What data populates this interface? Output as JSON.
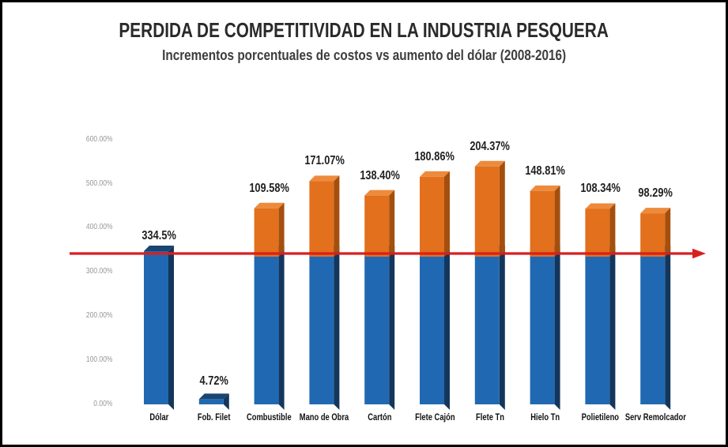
{
  "title": "PERDIDA DE COMPETITIVIDAD EN LA INDUSTRIA PESQUERA",
  "subtitle": "Incrementos porcentuales de costos vs aumento del dólar (2008-2016)",
  "chart_data": {
    "type": "bar",
    "stacked": true,
    "title": "PERDIDA DE COMPETITIVIDAD EN LA INDUSTRIA PESQUERA",
    "subtitle": "Incrementos porcentuales de costos vs aumento del dólar (2008-2016)",
    "base_value": 334.5,
    "reference_line": {
      "value": 334.5,
      "color": "#d81f1f"
    },
    "y_ticks": [
      "0.00%",
      "100.00%",
      "200.00%",
      "300.00%",
      "400.00%",
      "500.00%",
      "600.00%"
    ],
    "y_tick_values": [
      0,
      100,
      200,
      300,
      400,
      500,
      600
    ],
    "ylim": [
      0,
      600
    ],
    "categories": [
      "Dólar",
      "Fob. Filet",
      "Combustible",
      "Mano de Obra",
      "Cartón",
      "Flete Cajón",
      "Flete Tn",
      "Hielo Tn",
      "Polietileno",
      "Serv Remolcador"
    ],
    "bars": [
      {
        "category": "Dólar",
        "value": 334.5,
        "label": "334.5%",
        "stacked": false
      },
      {
        "category": "Fob. Filet",
        "value": 4.72,
        "label": "4.72%",
        "stacked": false
      },
      {
        "category": "Combustible",
        "value": 109.58,
        "label": "109.58%",
        "stacked": true
      },
      {
        "category": "Mano de Obra",
        "value": 171.07,
        "label": "171.07%",
        "stacked": true
      },
      {
        "category": "Cartón",
        "value": 138.4,
        "label": "138.40%",
        "stacked": true
      },
      {
        "category": "Flete Cajón",
        "value": 180.86,
        "label": "180.86%",
        "stacked": true
      },
      {
        "category": "Flete Tn",
        "value": 204.37,
        "label": "204.37%",
        "stacked": true
      },
      {
        "category": "Hielo Tn",
        "value": 148.81,
        "label": "148.81%",
        "stacked": true
      },
      {
        "category": "Polietileno",
        "value": 108.34,
        "label": "108.34%",
        "stacked": true
      },
      {
        "category": "Serv Remolcador",
        "value": 98.29,
        "label": "98.29%",
        "stacked": true
      }
    ],
    "colors": {
      "bar_front_blue": "#2069B2",
      "bar_side_blue": "#14365C",
      "bar_top_blue": "#1B4572",
      "bar_front_orange": "#E2701D",
      "bar_side_orange": "#A34F0E",
      "bar_top_orange": "#EE8A3C",
      "reference_line": "#D81F1F"
    }
  }
}
